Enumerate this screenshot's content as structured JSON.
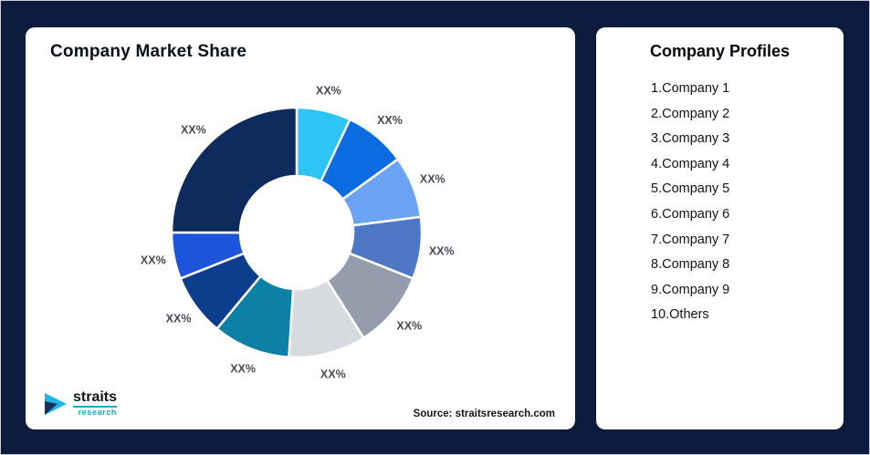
{
  "background_color": "#0d1b3e",
  "left_card": {
    "title": "Company Market Share",
    "source": "Source: straitsresearch.com",
    "logo": {
      "brand": "straits",
      "sub": "research",
      "accent_color": "#14a8c4"
    }
  },
  "right_card": {
    "title": "Company Profiles",
    "items": [
      "1.Company 1",
      "2.Company 2",
      "3.Company 3",
      "4.Company 4",
      "5.Company 5",
      "6.Company 6",
      "7.Company 7",
      "8.Company 8",
      "9.Company 9",
      "10.Others"
    ]
  },
  "chart_data": {
    "type": "pie",
    "subtype": "donut",
    "title": "Company Market Share",
    "categories": [
      "Company 1",
      "Company 2",
      "Company 3",
      "Company 4",
      "Company 5",
      "Company 6",
      "Company 7",
      "Company 8",
      "Company 9",
      "Others"
    ],
    "labels": [
      "XX%",
      "XX%",
      "XX%",
      "XX%",
      "XX%",
      "XX%",
      "XX%",
      "XX%",
      "XX%",
      "XX%"
    ],
    "values": [
      7,
      8,
      8,
      8,
      10,
      10,
      10,
      8,
      6,
      25
    ],
    "colors": [
      "#2ec4f5",
      "#0b6be0",
      "#6ba3f5",
      "#4e77c6",
      "#939dab",
      "#d7dbe0",
      "#0c80a5",
      "#0d3d8d",
      "#1c55da",
      "#0e2b5e"
    ],
    "label_color": "#454a54",
    "start_angle_deg": 0,
    "direction": "clockwise",
    "legend_position": "none",
    "hole_color": "#ffffff"
  }
}
